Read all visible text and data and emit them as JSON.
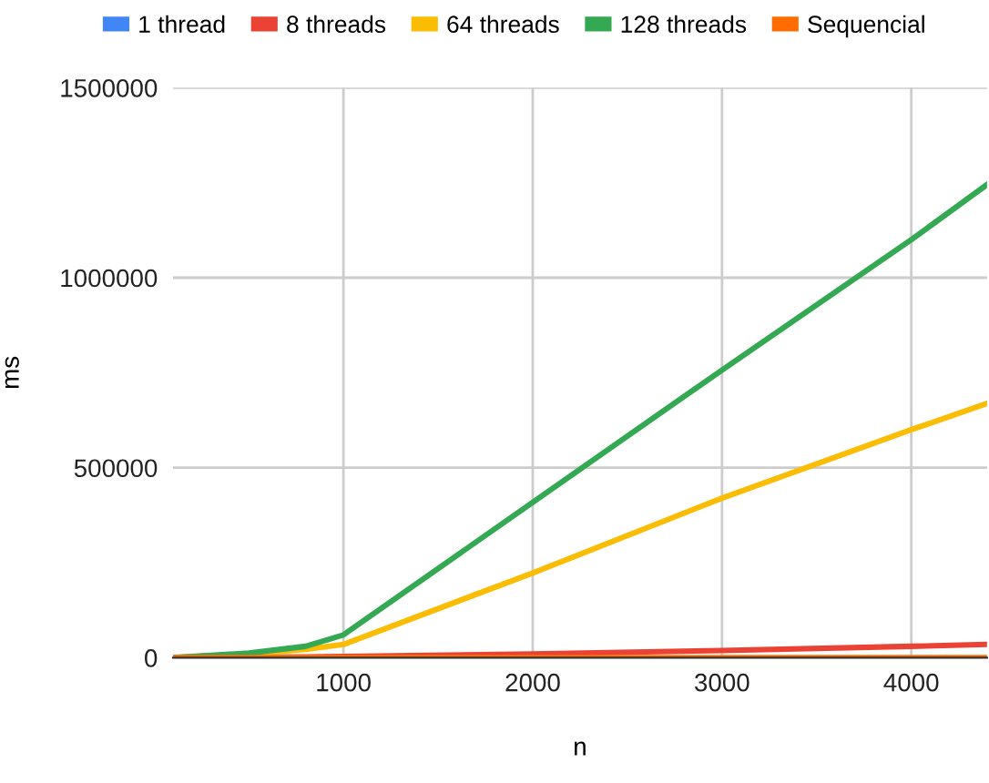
{
  "chart_data": {
    "type": "line",
    "xlabel": "n",
    "ylabel": "ms",
    "x": [
      100,
      500,
      800,
      1000,
      2000,
      3000,
      4000,
      4400
    ],
    "series": [
      {
        "name": "1 thread",
        "color": "#4285f4",
        "values": [
          null,
          null,
          null,
          null,
          null,
          null,
          null,
          null
        ]
      },
      {
        "name": "8 threads",
        "color": "#ea4335",
        "values": [
          0,
          1000,
          2000,
          3000,
          10000,
          19000,
          30000,
          35000
        ]
      },
      {
        "name": "64 threads",
        "color": "#fbbc04",
        "values": [
          0,
          10000,
          22000,
          35000,
          223000,
          420000,
          600000,
          669000
        ]
      },
      {
        "name": "128 threads",
        "color": "#34a853",
        "values": [
          0,
          12000,
          30000,
          60000,
          409000,
          757000,
          1100000,
          1245000
        ]
      },
      {
        "name": "Sequencial",
        "color": "#ff6d01",
        "values": [
          0,
          0,
          0,
          0,
          0,
          0,
          0,
          0
        ]
      }
    ],
    "xlim": [
      100,
      4400
    ],
    "xticks": [
      1000,
      2000,
      3000,
      4000
    ],
    "ylim": [
      0,
      1500000
    ],
    "yticks": [
      0,
      500000,
      1000000,
      1500000
    ],
    "grid": true,
    "legend": "top",
    "marker": "none",
    "line_style": "solid"
  }
}
